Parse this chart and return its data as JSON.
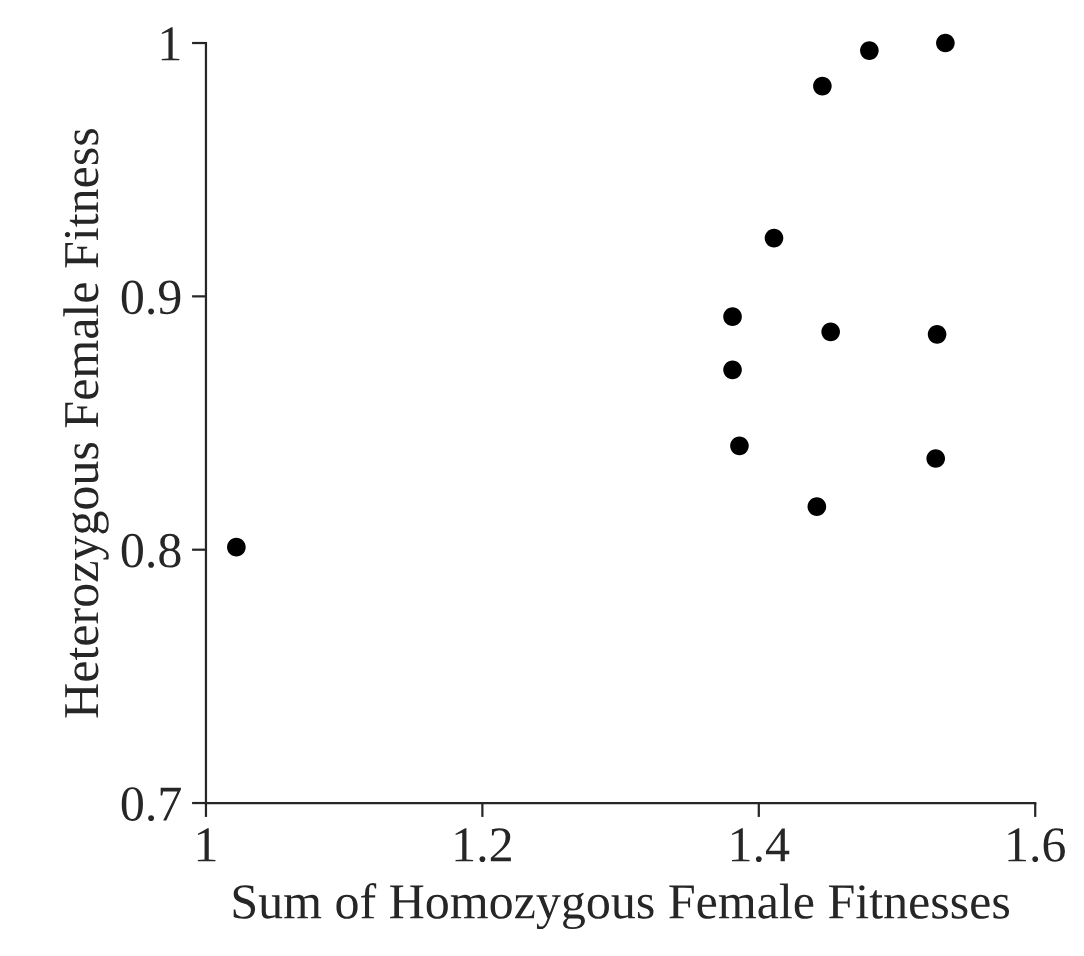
{
  "chart_data": {
    "type": "scatter",
    "xlabel": "Sum of Homozygous Female Fitnesses",
    "ylabel": "Heterozygous Female Fitness",
    "x": [
      1.022,
      1.381,
      1.381,
      1.386,
      1.411,
      1.446,
      1.48,
      1.535,
      1.452,
      1.529,
      1.528,
      1.442
    ],
    "series": [
      {
        "color": "#000000",
        "values": [
          0.801,
          0.892,
          0.871,
          0.841,
          0.923,
          0.983,
          0.997,
          1.0,
          0.886,
          0.885,
          0.836,
          0.817
        ]
      }
    ],
    "xlim": [
      1,
      1.6
    ],
    "xticks": [
      1,
      1.2,
      1.4,
      1.6
    ],
    "ylim": [
      0.7,
      1
    ],
    "yticks": [
      0.7,
      0.8,
      0.9,
      1
    ],
    "marker": "circle"
  }
}
